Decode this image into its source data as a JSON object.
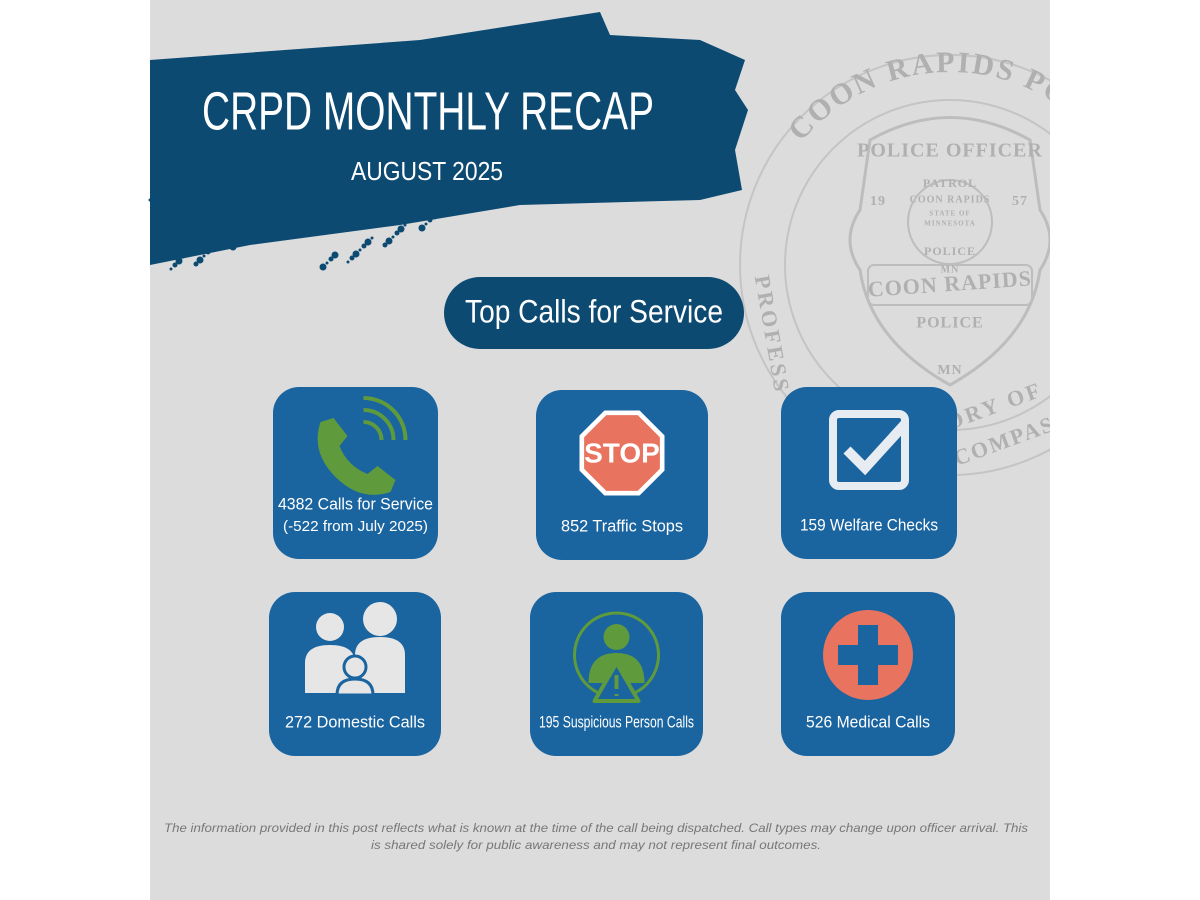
{
  "header": {
    "title": "CRPD MONTHLY RECAP",
    "subtitle": "AUGUST 2025"
  },
  "section_title": "Top Calls for Service",
  "cards": [
    {
      "lines": [
        "4382 Calls for Service",
        "(-522 from July 2025)"
      ]
    },
    {
      "icon_text": "STOP",
      "lines": [
        "852 Traffic Stops"
      ]
    },
    {
      "lines": [
        "159 Welfare Checks"
      ]
    },
    {
      "lines": [
        "272 Domestic Calls"
      ]
    },
    {
      "lines": [
        "195 Suspicious Person Calls"
      ]
    },
    {
      "lines": [
        "526 Medical Calls"
      ]
    }
  ],
  "seal": {
    "ring_top": "COON RAPIDS POLICE D",
    "ring_left": "PROFESS",
    "ring_right": "ORY OF",
    "ring_bottom": "COMPAS",
    "badge": [
      "POLICE OFFICER",
      "PATROL",
      "COON RAPIDS",
      "STATE OF",
      "MINNESOTA",
      "19",
      "57",
      "POLICE",
      "MN",
      "COON RAPIDS",
      "POLICE",
      "MN"
    ]
  },
  "disclaimer": [
    "The information provided in this post reflects what is known at the time of the call being dispatched. Call types may change upon officer arrival. This",
    "is shared solely for public awareness and may not represent final outcomes."
  ]
}
